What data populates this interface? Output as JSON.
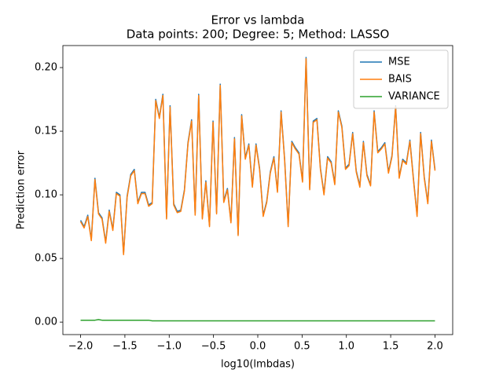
{
  "chart_data": {
    "type": "line",
    "title": "Error vs lambda",
    "subtitle": "Data points: 200; Degree: 5; Method: LASSO",
    "xlabel": "log10(lmbdas)",
    "ylabel": "Prediction error",
    "x": [
      -2.0,
      -1.96,
      -1.919,
      -1.879,
      -1.838,
      -1.798,
      -1.758,
      -1.717,
      -1.677,
      -1.636,
      -1.596,
      -1.556,
      -1.515,
      -1.475,
      -1.434,
      -1.394,
      -1.354,
      -1.313,
      -1.273,
      -1.232,
      -1.192,
      -1.152,
      -1.111,
      -1.071,
      -1.03,
      -0.99,
      -0.949,
      -0.909,
      -0.869,
      -0.828,
      -0.788,
      -0.747,
      -0.707,
      -0.667,
      -0.626,
      -0.586,
      -0.545,
      -0.505,
      -0.465,
      -0.424,
      -0.384,
      -0.343,
      -0.303,
      -0.263,
      -0.222,
      -0.182,
      -0.141,
      -0.101,
      -0.061,
      -0.02,
      0.02,
      0.061,
      0.101,
      0.141,
      0.182,
      0.222,
      0.263,
      0.303,
      0.343,
      0.384,
      0.424,
      0.465,
      0.505,
      0.545,
      0.586,
      0.626,
      0.667,
      0.707,
      0.747,
      0.788,
      0.828,
      0.869,
      0.909,
      0.949,
      0.99,
      1.03,
      1.071,
      1.111,
      1.152,
      1.192,
      1.232,
      1.273,
      1.313,
      1.354,
      1.394,
      1.434,
      1.475,
      1.515,
      1.556,
      1.596,
      1.636,
      1.677,
      1.717,
      1.758,
      1.798,
      1.838,
      1.879,
      1.919,
      1.96,
      2.0
    ],
    "series": [
      {
        "name": "MSE",
        "color": "#1f77b4",
        "values": [
          0.08,
          0.075,
          0.084,
          0.065,
          0.113,
          0.086,
          0.082,
          0.063,
          0.088,
          0.073,
          0.102,
          0.1,
          0.054,
          0.099,
          0.116,
          0.12,
          0.094,
          0.102,
          0.102,
          0.092,
          0.094,
          0.175,
          0.161,
          0.179,
          0.082,
          0.17,
          0.093,
          0.087,
          0.088,
          0.104,
          0.141,
          0.159,
          0.085,
          0.179,
          0.082,
          0.111,
          0.076,
          0.158,
          0.086,
          0.187,
          0.095,
          0.105,
          0.079,
          0.145,
          0.069,
          0.163,
          0.129,
          0.14,
          0.107,
          0.14,
          0.121,
          0.084,
          0.095,
          0.118,
          0.13,
          0.103,
          0.166,
          0.128,
          0.076,
          0.142,
          0.137,
          0.133,
          0.111,
          0.208,
          0.105,
          0.158,
          0.16,
          0.121,
          0.101,
          0.13,
          0.126,
          0.109,
          0.166,
          0.154,
          0.121,
          0.124,
          0.149,
          0.119,
          0.107,
          0.142,
          0.116,
          0.108,
          0.166,
          0.134,
          0.137,
          0.141,
          0.118,
          0.131,
          0.17,
          0.114,
          0.128,
          0.125,
          0.143,
          0.112,
          0.084,
          0.149,
          0.114,
          0.094,
          0.143,
          0.12
        ]
      },
      {
        "name": "BAIS",
        "color": "#ff7f0e",
        "values": [
          0.079,
          0.074,
          0.083,
          0.064,
          0.112,
          0.085,
          0.081,
          0.062,
          0.087,
          0.072,
          0.101,
          0.099,
          0.053,
          0.098,
          0.115,
          0.119,
          0.093,
          0.101,
          0.101,
          0.091,
          0.093,
          0.174,
          0.16,
          0.178,
          0.081,
          0.169,
          0.092,
          0.086,
          0.087,
          0.103,
          0.14,
          0.158,
          0.084,
          0.178,
          0.081,
          0.11,
          0.075,
          0.157,
          0.085,
          0.186,
          0.094,
          0.104,
          0.078,
          0.144,
          0.068,
          0.162,
          0.128,
          0.139,
          0.106,
          0.139,
          0.12,
          0.083,
          0.094,
          0.117,
          0.129,
          0.102,
          0.165,
          0.127,
          0.075,
          0.141,
          0.136,
          0.132,
          0.11,
          0.207,
          0.104,
          0.157,
          0.159,
          0.12,
          0.1,
          0.129,
          0.125,
          0.108,
          0.165,
          0.153,
          0.12,
          0.123,
          0.148,
          0.118,
          0.106,
          0.141,
          0.115,
          0.107,
          0.165,
          0.133,
          0.136,
          0.14,
          0.117,
          0.13,
          0.169,
          0.113,
          0.127,
          0.124,
          0.142,
          0.111,
          0.083,
          0.148,
          0.113,
          0.093,
          0.142,
          0.119
        ]
      },
      {
        "name": "VARIANCE",
        "color": "#2ca02c",
        "values": [
          0.0015,
          0.0015,
          0.0015,
          0.0015,
          0.0015,
          0.002,
          0.0015,
          0.0015,
          0.0015,
          0.0015,
          0.0015,
          0.0015,
          0.0015,
          0.0015,
          0.0015,
          0.0015,
          0.0015,
          0.0015,
          0.0015,
          0.0015,
          0.001,
          0.001,
          0.001,
          0.001,
          0.001,
          0.001,
          0.001,
          0.001,
          0.001,
          0.001,
          0.001,
          0.001,
          0.001,
          0.001,
          0.001,
          0.001,
          0.001,
          0.001,
          0.001,
          0.001,
          0.001,
          0.001,
          0.001,
          0.001,
          0.001,
          0.001,
          0.001,
          0.001,
          0.001,
          0.001,
          0.001,
          0.001,
          0.001,
          0.001,
          0.001,
          0.001,
          0.001,
          0.001,
          0.001,
          0.001,
          0.001,
          0.001,
          0.001,
          0.001,
          0.001,
          0.001,
          0.001,
          0.001,
          0.001,
          0.001,
          0.001,
          0.001,
          0.001,
          0.001,
          0.001,
          0.001,
          0.001,
          0.001,
          0.001,
          0.001,
          0.001,
          0.001,
          0.001,
          0.001,
          0.001,
          0.001,
          0.001,
          0.001,
          0.001,
          0.001,
          0.001,
          0.001,
          0.001,
          0.001,
          0.001,
          0.001,
          0.001,
          0.001,
          0.001,
          0.001
        ]
      }
    ],
    "xlim": [
      -2.2,
      2.2
    ],
    "xticks": [
      {
        "value": -2,
        "label": "−2.0"
      },
      {
        "value": -1.5,
        "label": "−1.5"
      },
      {
        "value": -1,
        "label": "−1.0"
      },
      {
        "value": -0.5,
        "label": "−0.5"
      },
      {
        "value": 0,
        "label": "0.0"
      },
      {
        "value": 0.5,
        "label": "0.5"
      },
      {
        "value": 1,
        "label": "1.0"
      },
      {
        "value": 1.5,
        "label": "1.5"
      },
      {
        "value": 2,
        "label": "2.0"
      }
    ],
    "ylim": [
      -0.0098,
      0.2173
    ],
    "yticks": [
      {
        "value": 0,
        "label": "0.00"
      },
      {
        "value": 0.05,
        "label": "0.05"
      },
      {
        "value": 0.1,
        "label": "0.10"
      },
      {
        "value": 0.15,
        "label": "0.15"
      },
      {
        "value": 0.2,
        "label": "0.20"
      }
    ],
    "grid": false,
    "legend": "upper right"
  }
}
